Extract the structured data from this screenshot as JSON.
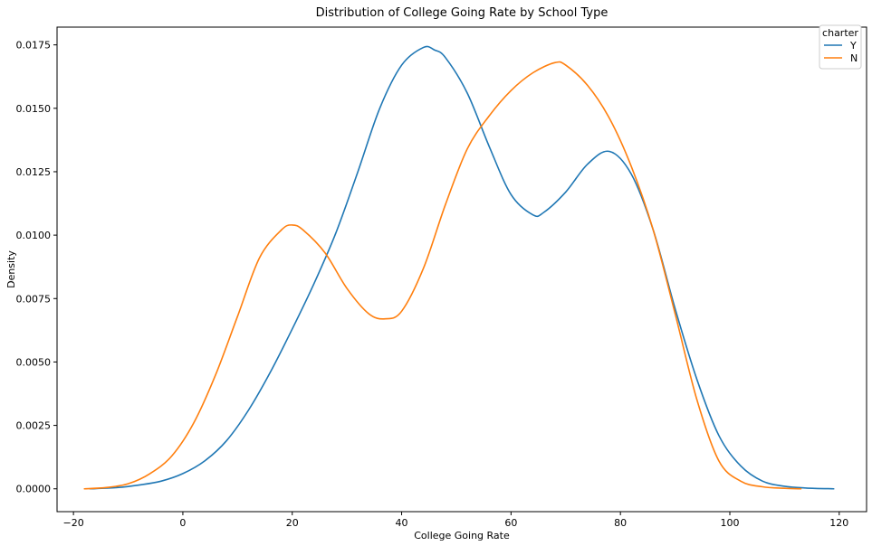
{
  "chart_data": {
    "type": "line",
    "title": "Distribution of College Going Rate by School Type",
    "xlabel": "College Going Rate",
    "ylabel": "Density",
    "xlim": [
      -23,
      125
    ],
    "ylim": [
      -0.0009,
      0.0182
    ],
    "xticks": [
      -20,
      0,
      20,
      40,
      60,
      80,
      100,
      120
    ],
    "xtick_labels": [
      "−20",
      "0",
      "20",
      "40",
      "60",
      "80",
      "100",
      "120"
    ],
    "yticks": [
      0,
      0.0025,
      0.005,
      0.0075,
      0.01,
      0.0125,
      0.015,
      0.0175
    ],
    "ytick_labels": [
      "0.0000",
      "0.0025",
      "0.0050",
      "0.0075",
      "0.0100",
      "0.0125",
      "0.0150",
      "0.0175"
    ],
    "grid": false,
    "legend": {
      "title": "charter",
      "placement": "top-right",
      "entries": [
        "Y",
        "N"
      ]
    },
    "series": [
      {
        "name": "Y",
        "color": "#1f77b4",
        "x": [
          -17,
          -12,
          -8,
          -4,
          0,
          4,
          8,
          12,
          16,
          20,
          24,
          28,
          32,
          36,
          40,
          44,
          46,
          48,
          52,
          56,
          60,
          64,
          66,
          70,
          74,
          78,
          82,
          86,
          90,
          94,
          98,
          102,
          106,
          110,
          114,
          119
        ],
        "y": [
          0.0,
          5e-05,
          0.00015,
          0.0003,
          0.0006,
          0.0011,
          0.0019,
          0.0031,
          0.0046,
          0.0063,
          0.0081,
          0.0101,
          0.0125,
          0.015,
          0.0167,
          0.0174,
          0.0173,
          0.017,
          0.0156,
          0.0135,
          0.0116,
          0.0108,
          0.0109,
          0.0117,
          0.0128,
          0.0133,
          0.0124,
          0.0102,
          0.0071,
          0.0043,
          0.0021,
          0.0009,
          0.0003,
          0.0001,
          3e-05,
          0.0
        ]
      },
      {
        "name": "N",
        "color": "#ff7f0e",
        "x": [
          -18,
          -14,
          -10,
          -6,
          -2,
          2,
          6,
          10,
          14,
          18,
          20,
          22,
          26,
          30,
          34,
          37,
          40,
          44,
          48,
          52,
          56,
          60,
          64,
          68,
          70,
          74,
          78,
          82,
          86,
          90,
          94,
          98,
          102,
          106,
          110,
          113
        ],
        "y": [
          0.0,
          5e-05,
          0.0002,
          0.0006,
          0.0013,
          0.0026,
          0.0045,
          0.0068,
          0.0091,
          0.0102,
          0.0104,
          0.0102,
          0.0093,
          0.0079,
          0.0069,
          0.0067,
          0.007,
          0.0087,
          0.0112,
          0.0134,
          0.0147,
          0.0157,
          0.0164,
          0.0168,
          0.0167,
          0.0159,
          0.0146,
          0.0127,
          0.0102,
          0.0069,
          0.0035,
          0.0011,
          0.0003,
          8e-05,
          2e-05,
          0.0
        ]
      }
    ]
  }
}
